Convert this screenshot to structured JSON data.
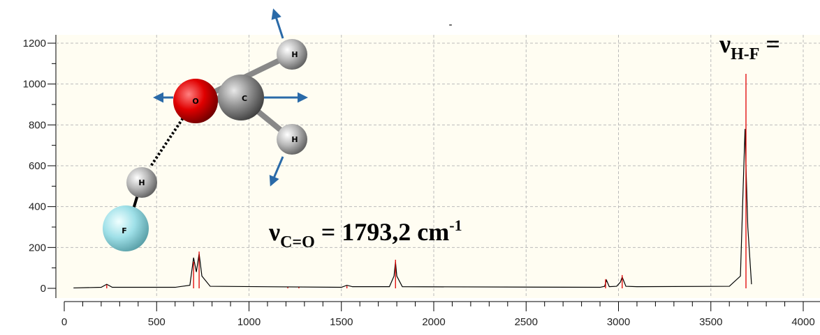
{
  "chart_data": {
    "type": "line",
    "title": "-",
    "xlim": [
      0,
      4000
    ],
    "xticks": [
      0,
      500,
      1000,
      1500,
      2000,
      2500,
      3000,
      3500,
      4000
    ],
    "ylim": [
      0,
      1200
    ],
    "yticks": [
      0,
      200,
      400,
      600,
      800,
      1000,
      1200
    ],
    "grid": true,
    "series": [
      {
        "color": "#000000",
        "style": "line",
        "x": [
          50,
          200,
          230,
          260,
          600,
          680,
          700,
          715,
          730,
          745,
          790,
          1500,
          1530,
          1560,
          1760,
          1785,
          1793,
          1800,
          1830,
          2900,
          2925,
          2935,
          2950,
          2990,
          3010,
          3020,
          3040,
          3100,
          3600,
          3660,
          3675,
          3685,
          3690,
          3700,
          3720
        ],
        "values": [
          2,
          5,
          20,
          5,
          5,
          15,
          150,
          80,
          170,
          60,
          10,
          5,
          15,
          8,
          8,
          60,
          130,
          60,
          8,
          5,
          10,
          40,
          8,
          10,
          30,
          55,
          10,
          8,
          10,
          60,
          500,
          780,
          600,
          300,
          20
        ]
      },
      {
        "color": "#e00000",
        "style": "stick",
        "x": [
          230,
          700,
          730,
          1210,
          1270,
          1530,
          1793,
          2930,
          3020,
          3690
        ],
        "values": [
          18,
          130,
          180,
          5,
          5,
          12,
          140,
          45,
          65,
          1050
        ]
      }
    ],
    "annotations": [
      {
        "symbol": "ν",
        "sub": "C=O",
        "text": " = 1793,2 cm",
        "sup": "-1"
      },
      {
        "symbol": "ν",
        "sub": "H-F",
        "text": " ="
      }
    ]
  },
  "molecule": {
    "atoms": [
      "O",
      "C",
      "H",
      "H",
      "H",
      "F"
    ]
  }
}
